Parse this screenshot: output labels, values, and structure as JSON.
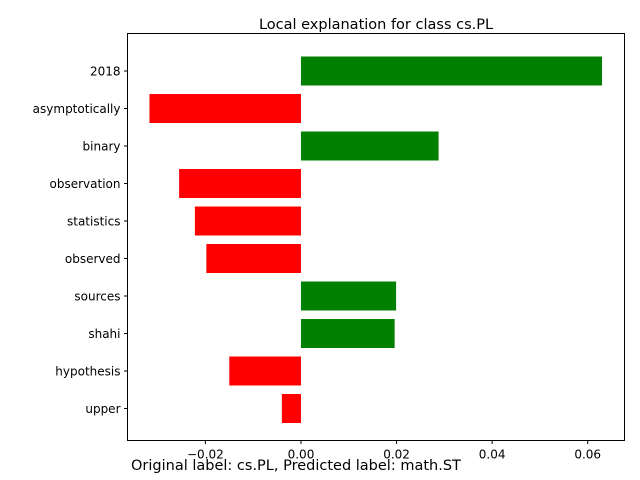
{
  "chart_data": {
    "type": "bar",
    "orientation": "horizontal",
    "title": "Local explanation for class cs.PL",
    "categories": [
      "2018",
      "asymptotically",
      "binary",
      "observation",
      "statistics",
      "observed",
      "sources",
      "shahi",
      "hypothesis",
      "upper"
    ],
    "values": [
      0.063,
      -0.0317,
      0.0288,
      -0.0255,
      -0.0222,
      -0.0198,
      0.0199,
      0.0196,
      -0.015,
      -0.004
    ],
    "xlim": [
      -0.0363,
      0.0677
    ],
    "xticks": [
      -0.02,
      0.0,
      0.02,
      0.04,
      0.06
    ],
    "xtick_labels": [
      "−0.02",
      "0.00",
      "0.02",
      "0.04",
      "0.06"
    ],
    "xlabel": "",
    "ylabel": "",
    "grid": false,
    "colors": {
      "positive": "#008000",
      "negative": "#ff0000"
    }
  },
  "caption": "Original label: cs.PL, Predicted label: math.ST"
}
